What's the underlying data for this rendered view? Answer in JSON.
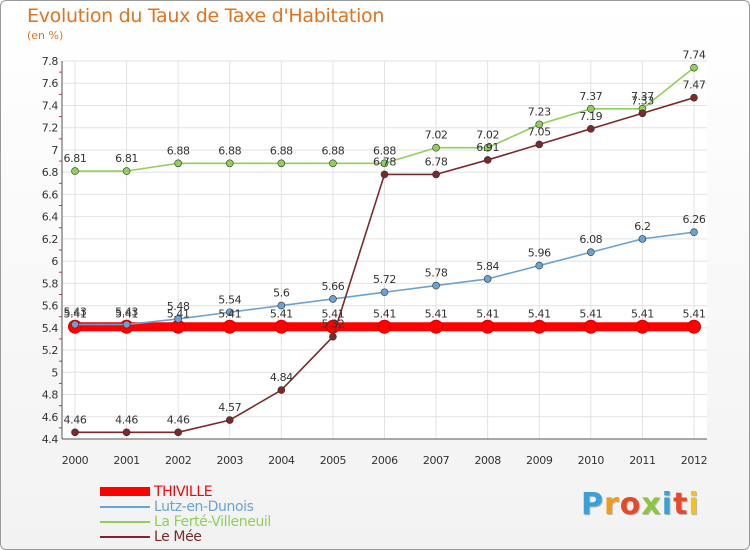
{
  "header": {
    "title": "Evolution du Taux de Taxe d'Habitation",
    "unit": "(en %)"
  },
  "logo": {
    "text": "Proxiti",
    "colors": [
      "#3aa0d8",
      "#f29a1a",
      "#e24a2b",
      "#8cc63f",
      "#3aa0d8",
      "#e24a2b",
      "#f2c21a"
    ]
  },
  "chart_data": {
    "type": "line",
    "x": [
      "2000",
      "2001",
      "2002",
      "2003",
      "2004",
      "2005",
      "2006",
      "2007",
      "2008",
      "2009",
      "2010",
      "2011",
      "2012"
    ],
    "ylim": [
      4.4,
      7.8
    ],
    "yticks": [
      "4.4",
      "4.6",
      "4.8",
      "5",
      "5.2",
      "5.4",
      "5.6",
      "5.8",
      "6",
      "6.2",
      "6.4",
      "6.6",
      "6.8",
      "7",
      "7.2",
      "7.4",
      "7.6",
      "7.8"
    ],
    "grid": true,
    "legend_position": "bottom-left",
    "series": [
      {
        "name": "THIVILLE",
        "color": "#ff0000",
        "values": [
          5.41,
          5.41,
          5.41,
          5.41,
          5.41,
          5.41,
          5.41,
          5.41,
          5.41,
          5.41,
          5.41,
          5.41,
          5.41
        ],
        "labels": [
          "5.41",
          "5.41",
          "5.41",
          "5.41",
          "5.41",
          "5.41",
          "5.41",
          "5.41",
          "5.41",
          "5.41",
          "5.41",
          "5.41",
          "5.41"
        ]
      },
      {
        "name": "Lutz-en-Dunois",
        "color": "#6aa3d2",
        "values": [
          5.43,
          5.43,
          5.48,
          5.54,
          5.6,
          5.66,
          5.72,
          5.78,
          5.84,
          5.96,
          6.08,
          6.2,
          6.26
        ],
        "labels": [
          "5.43",
          "5.43",
          "5.48",
          "5.54",
          "5.6",
          "5.66",
          "5.72",
          "5.78",
          "5.84",
          "5.96",
          "6.08",
          "6.2",
          "6.26"
        ]
      },
      {
        "name": "La Ferté-Villeneuil",
        "color": "#8fd05a",
        "values": [
          6.81,
          6.81,
          6.88,
          6.88,
          6.88,
          6.88,
          6.88,
          7.02,
          7.02,
          7.23,
          7.37,
          7.37,
          7.74
        ],
        "labels": [
          "6.81",
          "6.81",
          "6.88",
          "6.88",
          "6.88",
          "6.88",
          "6.88",
          "7.02",
          "7.02",
          "7.23",
          "7.37",
          "7.37",
          "7.74"
        ]
      },
      {
        "name": "Le Mée",
        "color": "#7a2a2a",
        "values": [
          4.46,
          4.46,
          4.46,
          4.57,
          4.84,
          5.32,
          6.78,
          6.78,
          6.91,
          7.05,
          7.19,
          7.33,
          7.47
        ],
        "labels": [
          "4.46",
          "4.46",
          "4.46",
          "4.57",
          "4.84",
          "5.32",
          "6.78",
          "6.78",
          "6.91",
          "7.05",
          "7.19",
          "7.33",
          "7.47"
        ]
      }
    ]
  }
}
